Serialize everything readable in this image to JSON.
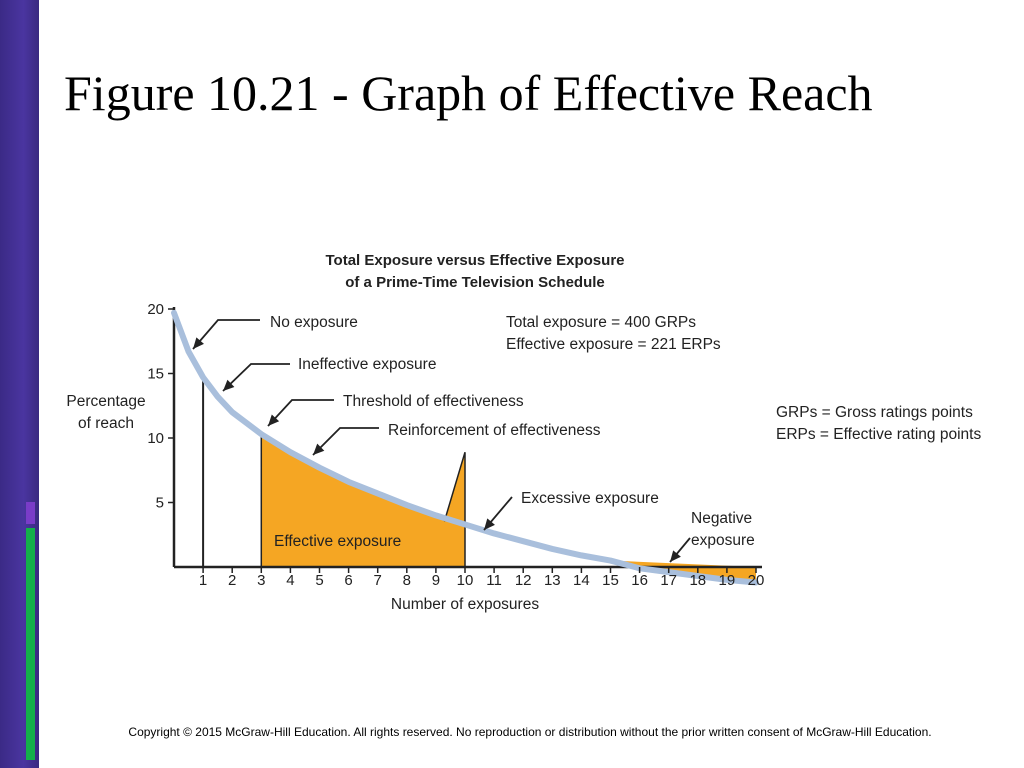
{
  "slide": {
    "title": "Figure 10.21 - Graph of Effective Reach",
    "copyright": "Copyright © 2015 McGraw-Hill Education.  All rights reserved. No reproduction or distribution without the prior written consent of McGraw-Hill Education."
  },
  "colors": {
    "sidebar": "#4a35a0",
    "fill": "#f5a623",
    "curve": "#a9bfdc",
    "accent_green": "#14b04a"
  },
  "chart_data": {
    "type": "area",
    "title": "Total Exposure versus Effective Exposure",
    "subtitle": "of a Prime-Time Television Schedule",
    "xlabel": "Number of exposures",
    "ylabel_lines": [
      "Percentage",
      "of reach"
    ],
    "x_ticks": [
      "1",
      "2",
      "3",
      "4",
      "5",
      "6",
      "7",
      "8",
      "9",
      "10",
      "11",
      "12",
      "13",
      "14",
      "15",
      "16",
      "17",
      "18",
      "19",
      "20"
    ],
    "y_ticks": [
      "5",
      "10",
      "15",
      "20"
    ],
    "xlim": [
      0,
      20
    ],
    "ylim": [
      0,
      20
    ],
    "curve": {
      "x": [
        0,
        0.5,
        1,
        1.5,
        2,
        3,
        4,
        5,
        6,
        7,
        8,
        9,
        10,
        11,
        12,
        13,
        14,
        15,
        16,
        17,
        18,
        19,
        20
      ],
      "y": [
        19.7,
        16.7,
        14.7,
        13.2,
        12.0,
        10.3,
        8.9,
        7.7,
        6.6,
        5.7,
        4.8,
        4.0,
        3.3,
        2.6,
        2.0,
        1.4,
        0.9,
        0.5,
        -0.1,
        -0.4,
        -0.7,
        -1.0,
        -1.2
      ]
    },
    "no_exposure_line": {
      "x": 1,
      "y": 14.7
    },
    "effective_region": {
      "x": [
        3,
        4,
        5,
        6,
        7,
        8,
        9,
        9.3,
        10,
        10
      ],
      "y": [
        10.3,
        8.9,
        7.7,
        6.6,
        5.7,
        4.8,
        4.0,
        3.6,
        8.9,
        0
      ]
    },
    "negative_region": {
      "x_start": 15,
      "x_end": 20,
      "y": 0
    },
    "annotations": {
      "no_exposure": "No exposure",
      "ineffective": "Ineffective exposure",
      "threshold": "Threshold of effectiveness",
      "reinforcement": "Reinforcement of effectiveness",
      "excessive": "Excessive exposure",
      "negative_1": "Negative",
      "negative_2": "exposure",
      "effective": "Effective exposure"
    },
    "totals": {
      "total_exposure": "Total exposure = 400 GRPs",
      "effective_exposure": "Effective exposure = 221 ERPs"
    },
    "legend_notes": {
      "grps": "GRPs = Gross ratings points",
      "erps": "ERPs = Effective rating points"
    }
  }
}
